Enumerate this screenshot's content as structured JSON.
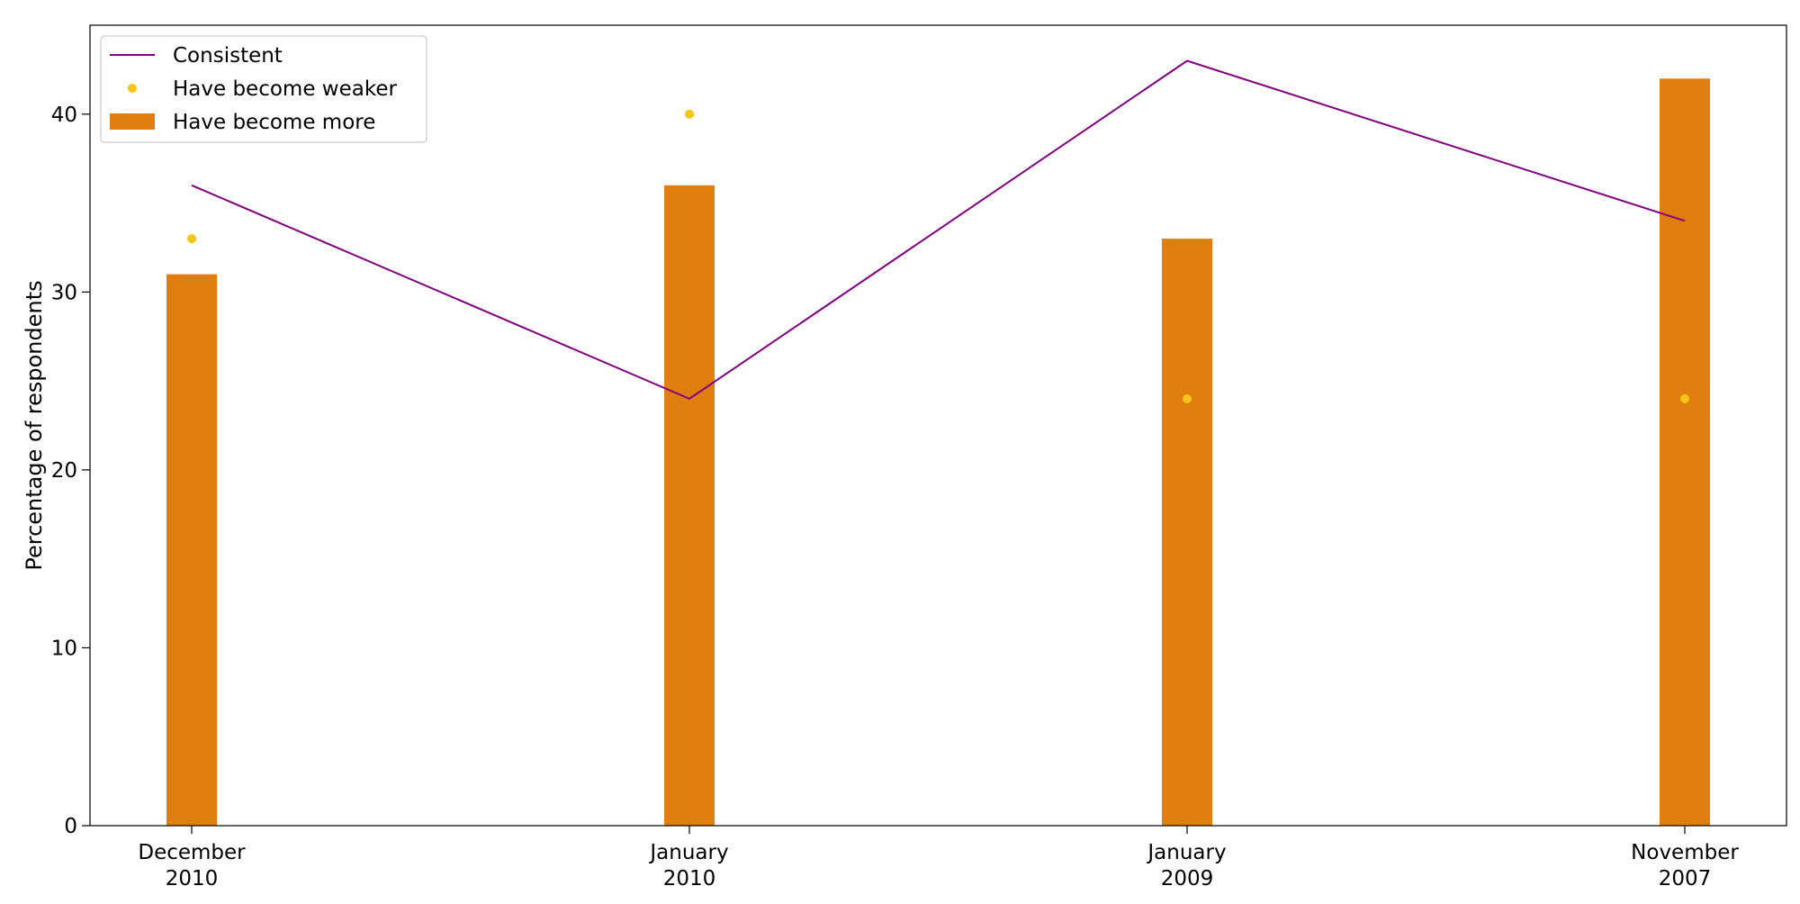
{
  "chart_data": {
    "type": "bar",
    "title": "",
    "xlabel": "",
    "ylabel": "Percentage of respondents",
    "categories": [
      [
        "December",
        "2010"
      ],
      [
        "January",
        "2010"
      ],
      [
        "January",
        "2009"
      ],
      [
        "November",
        "2007"
      ]
    ],
    "ylim": [
      0,
      45
    ],
    "yticks": [
      0,
      10,
      20,
      30,
      40
    ],
    "grid": false,
    "legend_position": "top-left",
    "series": [
      {
        "name": "Consistent",
        "kind": "line",
        "color": "#800080",
        "values": [
          36,
          24,
          43,
          34
        ]
      },
      {
        "name": "Have become weaker",
        "kind": "scatter",
        "color": "#F5C518",
        "values": [
          33,
          40,
          24,
          24
        ]
      },
      {
        "name": "Have become more",
        "kind": "bar",
        "color": "#E07F10",
        "values": [
          31,
          36,
          33,
          42
        ]
      }
    ]
  }
}
